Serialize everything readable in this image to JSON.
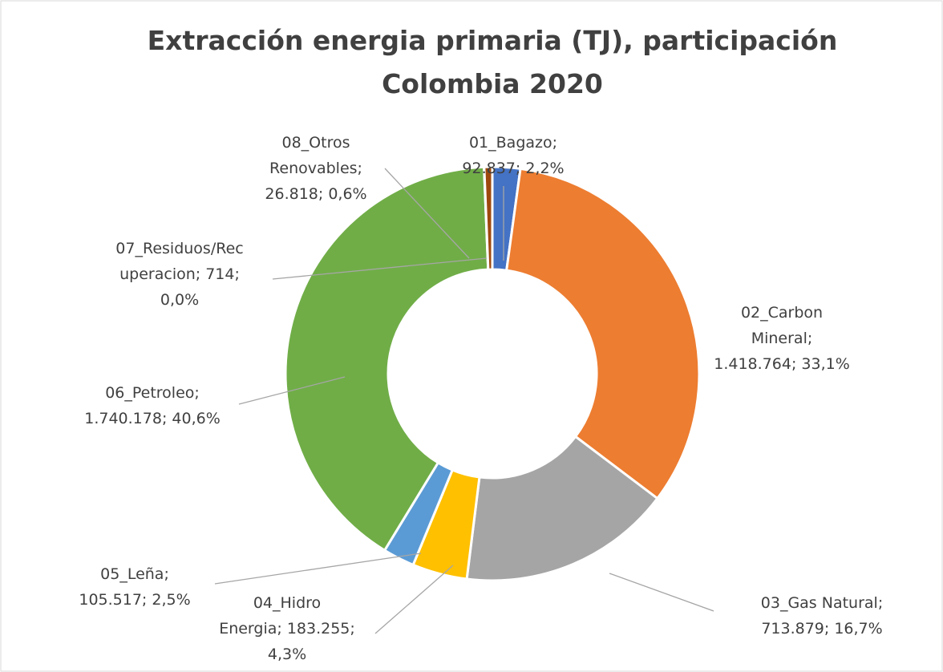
{
  "chart_data": {
    "type": "donut",
    "title": [
      "Extracción energia primaria (TJ), participación",
      "Colombia 2020"
    ],
    "values": [
      92837,
      1418764,
      713879,
      183255,
      105517,
      1740178,
      714,
      26818
    ],
    "labels": [
      [
        "01_Bagazo;",
        "92.837; 2,2%"
      ],
      [
        "02_Carbon",
        "Mineral;",
        "1.418.764; 33,1%"
      ],
      [
        "03_Gas Natural;",
        "713.879; 16,7%"
      ],
      [
        "04_Hidro",
        "Energia; 183.255;",
        "4,3%"
      ],
      [
        "05_Leña;",
        "105.517; 2,5%"
      ],
      [
        "06_Petroleo;",
        "1.740.178; 40,6%"
      ],
      [
        "07_Residuos/Rec",
        "uperacion; 714;",
        "0,0%"
      ],
      [
        "08_Otros",
        "Renovables;",
        "26.818; 0,6%"
      ]
    ],
    "colors": [
      "#4472c4",
      "#ed7d31",
      "#a5a5a5",
      "#ffc000",
      "#5b9bd5",
      "#70ad47",
      "#264478",
      "#9e480e"
    ]
  }
}
